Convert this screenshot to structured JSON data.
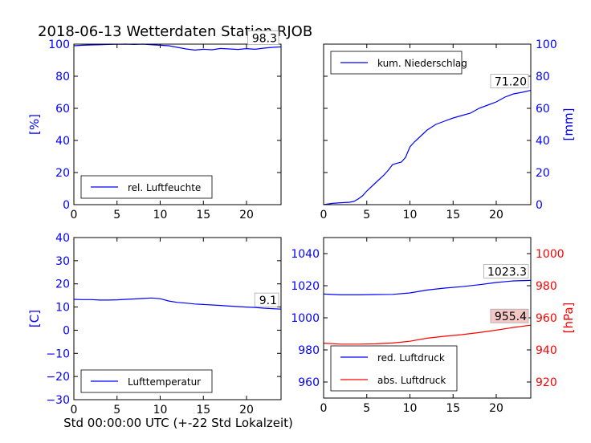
{
  "figure": {
    "title": "2018-06-13 Wetterdaten Station RJOB",
    "xlabel": "Std 00:00:00 UTC (+-22 Std Lokalzeit)"
  },
  "colors": {
    "left_axis": "#0000ff",
    "red": "#ff0000",
    "frame": "#000000",
    "tick_black": "#000000",
    "val_box_pink": "#f4c7c7"
  },
  "chart_data": [
    {
      "type": "line",
      "panel": "top-left",
      "xlim": [
        0,
        24
      ],
      "ylim": [
        0,
        100
      ],
      "xticks": [
        0,
        5,
        10,
        15,
        20
      ],
      "yticks": [
        0,
        20,
        40,
        60,
        80,
        100
      ],
      "ylabel": "[%]",
      "ylabel_side": "left",
      "ytick_color": "blue",
      "legend": {
        "placement": "lower-center"
      },
      "value_label": "98.3",
      "series": [
        {
          "name": "rel. Luftfeuchte",
          "color": "#0000ff",
          "x": [
            0,
            1,
            2,
            3,
            4,
            5,
            6,
            7,
            8,
            9,
            10,
            11,
            12,
            13,
            14,
            15,
            16,
            17,
            18,
            19,
            20,
            21,
            22,
            23,
            24
          ],
          "y": [
            99.0,
            99.3,
            99.5,
            99.6,
            99.8,
            99.9,
            100.0,
            99.8,
            100.0,
            99.6,
            99.3,
            99.0,
            98.0,
            97.0,
            96.3,
            96.8,
            96.5,
            97.3,
            97.0,
            96.7,
            97.2,
            96.8,
            97.5,
            98.0,
            98.3
          ]
        }
      ]
    },
    {
      "type": "line",
      "panel": "top-right",
      "xlim": [
        0,
        24
      ],
      "ylim": [
        0,
        100
      ],
      "xticks": [
        0,
        5,
        10,
        15,
        20
      ],
      "yticks": [
        0,
        20,
        40,
        60,
        80,
        100
      ],
      "ylabel": "[mm]",
      "ylabel_side": "right",
      "ytick_color": "blue",
      "legend": {
        "placement": "upper-left"
      },
      "value_label": "71.20",
      "series": [
        {
          "name": "kum. Niederschlag",
          "color": "#0000ff",
          "x": [
            0,
            1,
            2,
            3,
            3.5,
            4,
            4.5,
            5,
            6,
            7,
            7.5,
            8,
            8.5,
            9,
            9.5,
            10,
            10.5,
            11,
            12,
            13,
            14,
            15,
            16,
            17,
            18,
            19,
            20,
            21,
            22,
            23,
            24
          ],
          "y": [
            0,
            0.8,
            1.2,
            1.5,
            2.0,
            3.5,
            5.5,
            8.5,
            13.5,
            18.5,
            21.5,
            25.0,
            25.8,
            26.5,
            29.5,
            36.0,
            39.0,
            41.5,
            46.5,
            50.0,
            52.0,
            54.0,
            55.5,
            57.0,
            60.0,
            62.0,
            64.0,
            67.0,
            69.0,
            70.0,
            71.2
          ]
        }
      ]
    },
    {
      "type": "line",
      "panel": "bottom-left",
      "xlim": [
        0,
        24
      ],
      "ylim": [
        -30,
        40
      ],
      "xticks": [
        0,
        5,
        10,
        15,
        20
      ],
      "yticks": [
        -30,
        -20,
        -10,
        0,
        10,
        20,
        30,
        40
      ],
      "ylabel": "[C]",
      "ylabel_side": "left",
      "ytick_color": "blue",
      "legend": {
        "placement": "lower-left"
      },
      "value_label": "9.1",
      "series": [
        {
          "name": "Lufttemperatur",
          "color": "#0000ff",
          "x": [
            0,
            1,
            2,
            3,
            4,
            5,
            6,
            7,
            8,
            9,
            10,
            11,
            12,
            13,
            14,
            15,
            16,
            17,
            18,
            19,
            20,
            21,
            22,
            23,
            24
          ],
          "y": [
            13.3,
            13.2,
            13.2,
            13.0,
            13.0,
            13.1,
            13.3,
            13.5,
            13.7,
            13.9,
            13.6,
            12.6,
            12.0,
            11.7,
            11.3,
            11.1,
            10.9,
            10.7,
            10.4,
            10.2,
            10.0,
            9.8,
            9.5,
            9.3,
            9.1
          ]
        }
      ]
    },
    {
      "type": "line",
      "panel": "bottom-right",
      "xlim": [
        0,
        24
      ],
      "ylim": [
        950,
        1050
      ],
      "ylim_right": [
        910,
        1010
      ],
      "xticks": [
        0,
        5,
        10,
        15,
        20
      ],
      "yticks": [
        960,
        980,
        1000,
        1020,
        1040
      ],
      "yticks_right": [
        920,
        940,
        960,
        980,
        1000
      ],
      "ylabel": "[hPa]",
      "ylabel_side": "right",
      "ytick_color": "blue",
      "ytick_right_color": "red",
      "legend": {
        "placement": "lower-left"
      },
      "value_labels": [
        "1023.3",
        "955.4"
      ],
      "series": [
        {
          "name": "red. Luftdruck",
          "color": "#0000ff",
          "axis": "left",
          "x": [
            0,
            2,
            4,
            6,
            8,
            10,
            12,
            14,
            16,
            18,
            20,
            22,
            24
          ],
          "y": [
            1014.8,
            1014.3,
            1014.3,
            1014.5,
            1014.6,
            1015.5,
            1017.3,
            1018.5,
            1019.4,
            1020.6,
            1022.0,
            1023.0,
            1023.3
          ]
        },
        {
          "name": "abs. Luftdruck",
          "color": "#ff0000",
          "axis": "right",
          "x": [
            0,
            2,
            4,
            6,
            8,
            10,
            12,
            14,
            16,
            18,
            20,
            22,
            24
          ],
          "y": [
            944.2,
            943.6,
            943.6,
            943.8,
            944.3,
            945.4,
            947.3,
            948.5,
            949.5,
            950.8,
            952.3,
            954.0,
            955.4
          ]
        }
      ]
    }
  ]
}
